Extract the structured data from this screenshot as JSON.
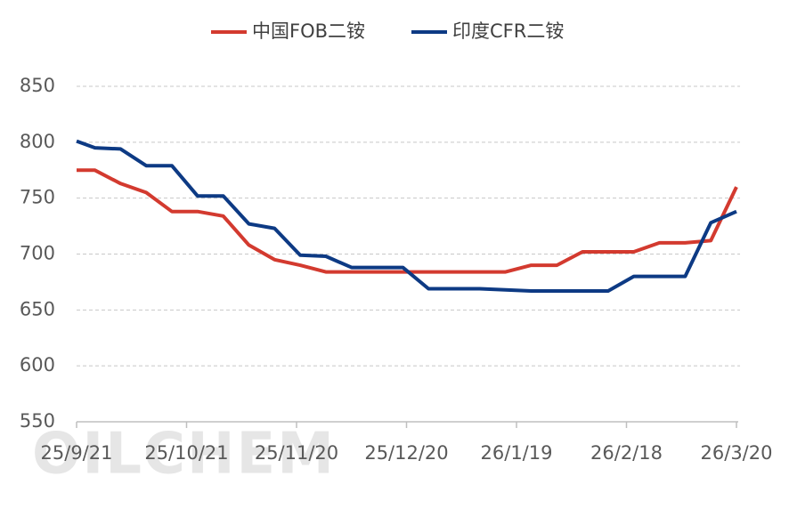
{
  "chart_data": {
    "type": "line",
    "watermark": "OILCHEM",
    "x": [
      "25/9/21",
      "25/9/26",
      "25/10/3",
      "25/10/10",
      "25/10/17",
      "25/10/24",
      "25/10/31",
      "25/11/7",
      "25/11/14",
      "25/11/21",
      "25/11/28",
      "25/12/5",
      "25/12/12",
      "25/12/19",
      "25/12/26",
      "26/1/2",
      "26/1/9",
      "26/1/16",
      "26/1/23",
      "26/1/30",
      "26/2/6",
      "26/2/13",
      "26/2/20",
      "26/2/27",
      "26/3/6",
      "26/3/13",
      "26/3/20"
    ],
    "series": [
      {
        "name": "中国FOB二铵",
        "color": "#d33a2f",
        "values": [
          775,
          775,
          763,
          755,
          738,
          738,
          734,
          708,
          695,
          690,
          684,
          684,
          684,
          684,
          684,
          684,
          684,
          684,
          690,
          690,
          702,
          702,
          702,
          710,
          710,
          712,
          760
        ]
      },
      {
        "name": "印度CFR二铵",
        "color": "#0d3a84",
        "values": [
          801,
          795,
          794,
          779,
          779,
          752,
          752,
          727,
          723,
          699,
          698,
          688,
          688,
          688,
          669,
          669,
          669,
          668,
          667,
          667,
          667,
          667,
          680,
          680,
          680,
          728,
          738
        ]
      }
    ],
    "xlim": [
      "25/9/21",
      "26/3/20"
    ],
    "xticks": [
      "25/9/21",
      "25/10/21",
      "25/11/20",
      "25/12/20",
      "26/1/19",
      "26/2/18",
      "26/3/20"
    ],
    "ylim": [
      550,
      850
    ],
    "yticks": [
      550,
      600,
      650,
      700,
      750,
      800,
      850
    ],
    "grid": true,
    "legend": "top"
  }
}
